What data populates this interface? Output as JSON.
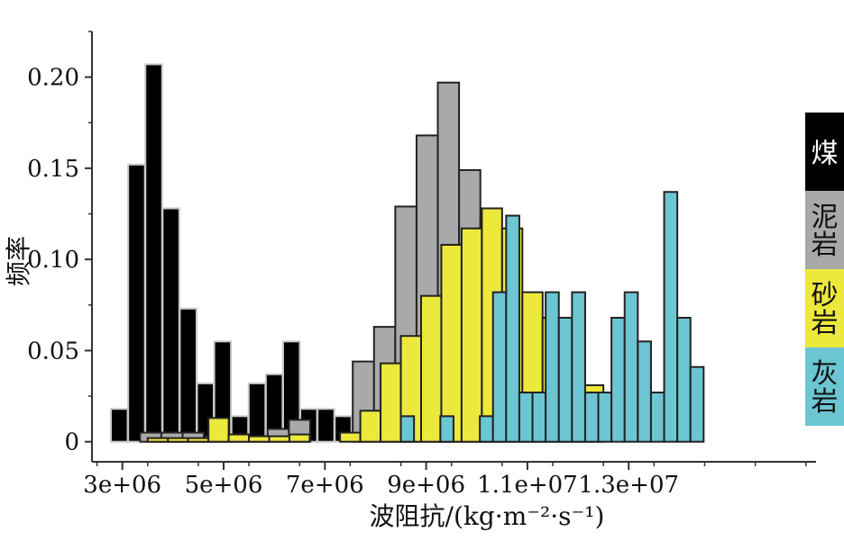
{
  "chart_data": {
    "type": "bar",
    "title": "",
    "xlabel": "波阻抗/(kg·m⁻²·s⁻¹)",
    "ylabel": "频率",
    "xlim": [
      2400000,
      16700000
    ],
    "ylim": [
      -0.011,
      0.225
    ],
    "x_ticks": [
      3000000,
      5000000,
      7000000,
      9000000,
      11000000,
      13000000
    ],
    "x_tick_labels": [
      "3e+06",
      "5e+06",
      "7e+06",
      "9e+06",
      "1.1e+07",
      "1.3e+07"
    ],
    "y_ticks": [
      0,
      0.05,
      0.1,
      0.15,
      0.2
    ],
    "y_tick_labels": [
      "0",
      "0.05",
      "0.10",
      "0.15",
      "0.20"
    ],
    "grid": false,
    "legend_position": "right",
    "series": [
      {
        "name": "煤",
        "color": "#000000",
        "bin_width": 330000,
        "bins": [
          {
            "x": 2940000,
            "y": 0.018
          },
          {
            "x": 3280000,
            "y": 0.152
          },
          {
            "x": 3620000,
            "y": 0.207
          },
          {
            "x": 3960000,
            "y": 0.128
          },
          {
            "x": 4300000,
            "y": 0.073
          },
          {
            "x": 4640000,
            "y": 0.032
          },
          {
            "x": 4980000,
            "y": 0.055
          },
          {
            "x": 5320000,
            "y": 0.014
          },
          {
            "x": 5660000,
            "y": 0.032
          },
          {
            "x": 6000000,
            "y": 0.037
          },
          {
            "x": 6340000,
            "y": 0.055
          },
          {
            "x": 6680000,
            "y": 0.018
          },
          {
            "x": 7020000,
            "y": 0.018
          },
          {
            "x": 7360000,
            "y": 0.014
          }
        ]
      },
      {
        "name": "泥岩",
        "color": "#a9a9a9",
        "bin_width": 420000,
        "bins": [
          {
            "x": 3560000,
            "y": 0.005
          },
          {
            "x": 3980000,
            "y": 0.005
          },
          {
            "x": 4400000,
            "y": 0.005
          },
          {
            "x": 4820000,
            "y": 0.003
          },
          {
            "x": 5240000,
            "y": 0.003
          },
          {
            "x": 5660000,
            "y": 0.003
          },
          {
            "x": 6080000,
            "y": 0.007
          },
          {
            "x": 6500000,
            "y": 0.012
          },
          {
            "x": 7760000,
            "y": 0.044
          },
          {
            "x": 8180000,
            "y": 0.063
          },
          {
            "x": 8600000,
            "y": 0.129
          },
          {
            "x": 9020000,
            "y": 0.168
          },
          {
            "x": 9440000,
            "y": 0.197
          },
          {
            "x": 9860000,
            "y": 0.149
          },
          {
            "x": 10280000,
            "y": 0.122
          }
        ]
      },
      {
        "name": "砂岩",
        "color": "#ede83c",
        "bin_width": 400000,
        "bins": [
          {
            "x": 3700000,
            "y": 0.002
          },
          {
            "x": 4100000,
            "y": 0.002
          },
          {
            "x": 4500000,
            "y": 0.002
          },
          {
            "x": 4900000,
            "y": 0.013
          },
          {
            "x": 5300000,
            "y": 0.004
          },
          {
            "x": 5700000,
            "y": 0.003
          },
          {
            "x": 6100000,
            "y": 0.003
          },
          {
            "x": 6500000,
            "y": 0.004
          },
          {
            "x": 7500000,
            "y": 0.005
          },
          {
            "x": 7900000,
            "y": 0.017
          },
          {
            "x": 8300000,
            "y": 0.043
          },
          {
            "x": 8700000,
            "y": 0.058
          },
          {
            "x": 9100000,
            "y": 0.08
          },
          {
            "x": 9500000,
            "y": 0.108
          },
          {
            "x": 9900000,
            "y": 0.117
          },
          {
            "x": 10300000,
            "y": 0.128
          },
          {
            "x": 10700000,
            "y": 0.117
          },
          {
            "x": 11100000,
            "y": 0.082
          },
          {
            "x": 11500000,
            "y": 0.068
          },
          {
            "x": 11900000,
            "y": 0.063
          },
          {
            "x": 12300000,
            "y": 0.031
          }
        ]
      },
      {
        "name": "灰岩",
        "color": "#6cc5d2",
        "bin_width": 260000,
        "bins": [
          {
            "x": 8630000,
            "y": 0.014
          },
          {
            "x": 9410000,
            "y": 0.014
          },
          {
            "x": 10190000,
            "y": 0.014
          },
          {
            "x": 10450000,
            "y": 0.082
          },
          {
            "x": 10710000,
            "y": 0.124
          },
          {
            "x": 10970000,
            "y": 0.027
          },
          {
            "x": 11230000,
            "y": 0.027
          },
          {
            "x": 11490000,
            "y": 0.082
          },
          {
            "x": 11750000,
            "y": 0.068
          },
          {
            "x": 12010000,
            "y": 0.082
          },
          {
            "x": 12270000,
            "y": 0.027
          },
          {
            "x": 12530000,
            "y": 0.027
          },
          {
            "x": 12790000,
            "y": 0.068
          },
          {
            "x": 13050000,
            "y": 0.082
          },
          {
            "x": 13310000,
            "y": 0.055
          },
          {
            "x": 13570000,
            "y": 0.027
          },
          {
            "x": 13830000,
            "y": 0.137
          },
          {
            "x": 14090000,
            "y": 0.068
          },
          {
            "x": 14350000,
            "y": 0.041
          }
        ]
      }
    ]
  }
}
